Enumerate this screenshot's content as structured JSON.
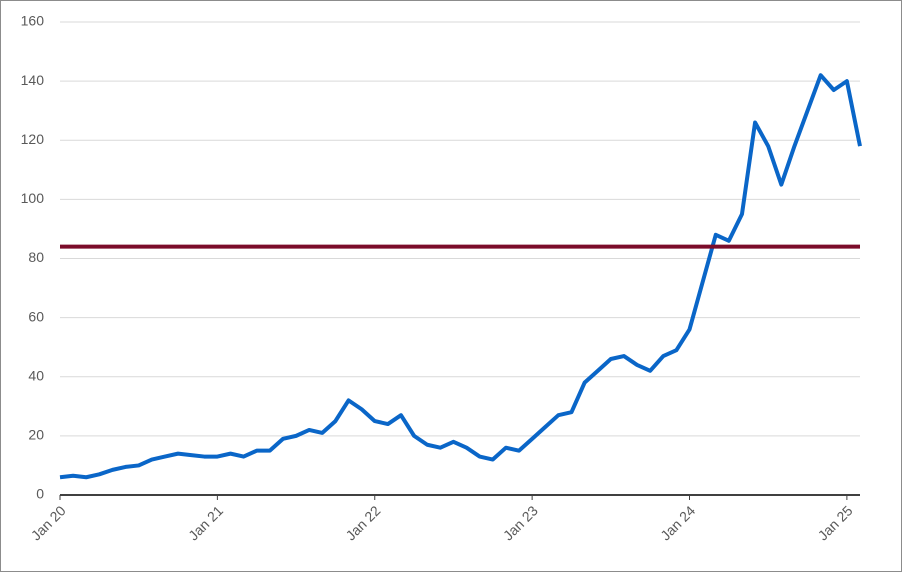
{
  "chart_data": {
    "type": "line",
    "x": [
      "2020-01",
      "2020-02",
      "2020-03",
      "2020-04",
      "2020-05",
      "2020-06",
      "2020-07",
      "2020-08",
      "2020-09",
      "2020-10",
      "2020-11",
      "2020-12",
      "2021-01",
      "2021-02",
      "2021-03",
      "2021-04",
      "2021-05",
      "2021-06",
      "2021-07",
      "2021-08",
      "2021-09",
      "2021-10",
      "2021-11",
      "2021-12",
      "2022-01",
      "2022-02",
      "2022-03",
      "2022-04",
      "2022-05",
      "2022-06",
      "2022-07",
      "2022-08",
      "2022-09",
      "2022-10",
      "2022-11",
      "2022-12",
      "2023-01",
      "2023-02",
      "2023-03",
      "2023-04",
      "2023-05",
      "2023-06",
      "2023-07",
      "2023-08",
      "2023-09",
      "2023-10",
      "2023-11",
      "2023-12",
      "2024-01",
      "2024-02",
      "2024-03",
      "2024-04",
      "2024-05",
      "2024-06",
      "2024-07",
      "2024-08",
      "2024-09",
      "2024-10",
      "2024-11",
      "2024-12",
      "2025-01",
      "2025-02"
    ],
    "series": [
      {
        "color": "#0a66c8",
        "values": [
          6,
          6.5,
          6,
          7,
          8.5,
          9.5,
          10,
          12,
          13,
          14,
          13.5,
          13,
          13,
          14,
          13,
          15,
          15,
          19,
          20,
          22,
          21,
          25,
          32,
          29,
          25,
          24,
          27,
          20,
          17,
          16,
          18,
          16,
          13,
          12,
          16,
          15,
          19,
          23,
          27,
          28,
          38,
          42,
          46,
          47,
          44,
          42,
          47,
          49,
          56,
          72,
          88,
          86,
          95,
          126,
          118,
          105,
          118,
          130,
          142,
          137,
          140,
          118
        ]
      }
    ],
    "xlim": [
      "2020-01",
      "2025-02"
    ],
    "xticks": [
      {
        "value": "2020-01",
        "label": "Jan 20"
      },
      {
        "value": "2021-01",
        "label": "Jan 21"
      },
      {
        "value": "2022-01",
        "label": "Jan 22"
      },
      {
        "value": "2023-01",
        "label": "Jan 23"
      },
      {
        "value": "2024-01",
        "label": "Jan 24"
      },
      {
        "value": "2025-01",
        "label": "Jan 25"
      }
    ],
    "ylim": [
      0,
      160
    ],
    "yticks": [
      0,
      20,
      40,
      60,
      80,
      100,
      120,
      140,
      160
    ],
    "grid": true,
    "reference_line": {
      "value": 84,
      "color": "#7b0c2a"
    }
  }
}
